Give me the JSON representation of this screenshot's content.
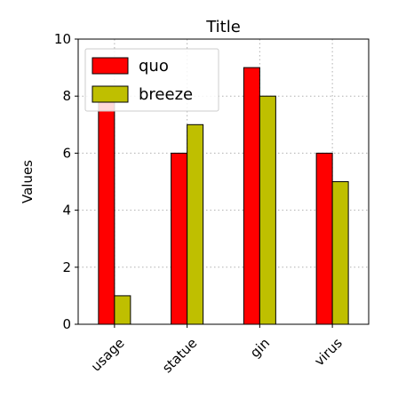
{
  "chart_data": {
    "type": "bar",
    "title": "Title",
    "xlabel": "",
    "ylabel": "Values",
    "categories": [
      "usage",
      "statue",
      "gin",
      "virus"
    ],
    "series": [
      {
        "name": "quo",
        "values": [
          8,
          6,
          9,
          6
        ],
        "color": "#ff0000"
      },
      {
        "name": "breeze",
        "values": [
          1,
          7,
          8,
          5
        ],
        "color": "#bfbf00"
      }
    ],
    "ylim": [
      0,
      10
    ],
    "yticks": [
      0,
      2,
      4,
      6,
      8,
      10
    ],
    "grid": true,
    "legend_position": "top-left"
  }
}
